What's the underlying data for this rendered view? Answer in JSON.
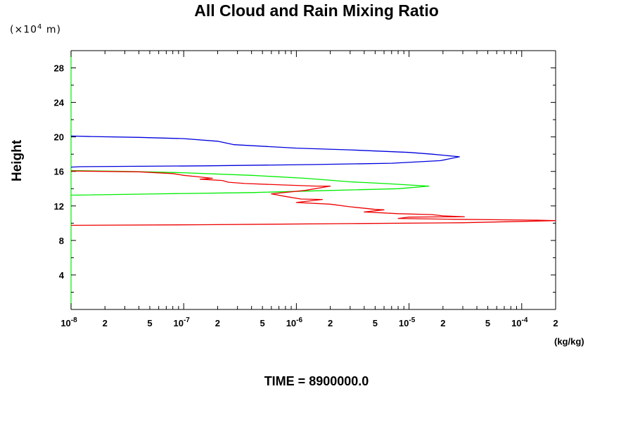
{
  "chart_data": {
    "type": "line",
    "title": "All Cloud and Rain Mixing Ratio",
    "ylabel": "Height",
    "yunit_prefix": "(×10",
    "yunit_exp": "4",
    "yunit_suffix": " m)",
    "xunit": "(kg/kg)",
    "footer": "TIME = 8900000.0",
    "xscale": "log",
    "xlim": [
      1e-08,
      0.0002
    ],
    "ylim": [
      0,
      30
    ],
    "grid": false,
    "yticks": [
      4,
      8,
      12,
      16,
      20,
      24,
      28
    ],
    "xticks": [
      {
        "v": 1e-08,
        "b": "10",
        "e": "-8"
      },
      {
        "v": 2e-08,
        "b": "2",
        "e": ""
      },
      {
        "v": 5e-08,
        "b": "5",
        "e": ""
      },
      {
        "v": 1e-07,
        "b": "10",
        "e": "-7"
      },
      {
        "v": 2e-07,
        "b": "2",
        "e": ""
      },
      {
        "v": 5e-07,
        "b": "5",
        "e": ""
      },
      {
        "v": 1e-06,
        "b": "10",
        "e": "-6"
      },
      {
        "v": 2e-06,
        "b": "2",
        "e": ""
      },
      {
        "v": 5e-06,
        "b": "5",
        "e": ""
      },
      {
        "v": 1e-05,
        "b": "10",
        "e": "-5"
      },
      {
        "v": 2e-05,
        "b": "2",
        "e": ""
      },
      {
        "v": 5e-05,
        "b": "5",
        "e": ""
      },
      {
        "v": 0.0001,
        "b": "10",
        "e": "-4"
      },
      {
        "v": 0.0002,
        "b": "2",
        "e": ""
      }
    ],
    "series": [
      {
        "color": "#0000dd",
        "points": [
          [
            1e-08,
            20.1
          ],
          [
            1.5e-08,
            20.05
          ],
          [
            4e-08,
            19.95
          ],
          [
            1e-07,
            19.8
          ],
          [
            2e-07,
            19.5
          ],
          [
            2.8e-07,
            19.1
          ],
          [
            1e-06,
            18.7
          ],
          [
            3e-06,
            18.5
          ],
          [
            1e-05,
            18.2
          ],
          [
            1.6e-05,
            18.0
          ],
          [
            2.8e-05,
            17.7
          ],
          [
            1.9e-05,
            17.25
          ],
          [
            7e-06,
            16.95
          ],
          [
            1.5e-06,
            16.8
          ],
          [
            1.5e-07,
            16.65
          ],
          [
            1.2e-08,
            16.55
          ],
          [
            1e-08,
            16.5
          ]
        ]
      },
      {
        "color": "#00ee00",
        "points": [
          [
            1e-08,
            16.1
          ],
          [
            3e-08,
            16.0
          ],
          [
            1e-07,
            15.85
          ],
          [
            4e-07,
            15.55
          ],
          [
            1.2e-06,
            15.2
          ],
          [
            3e-06,
            14.8
          ],
          [
            6e-06,
            14.6
          ],
          [
            1.1e-05,
            14.4
          ],
          [
            1.5e-05,
            14.3
          ],
          [
            8e-06,
            14.0
          ],
          [
            1.5e-06,
            13.75
          ],
          [
            4e-07,
            13.55
          ],
          [
            6e-08,
            13.4
          ],
          [
            1e-08,
            13.25
          ]
        ]
      },
      {
        "color": "#ee0000",
        "points": [
          [
            1e-08,
            16.05
          ],
          [
            4e-08,
            15.95
          ],
          [
            8e-08,
            15.75
          ],
          [
            1e-07,
            15.55
          ],
          [
            1.3e-07,
            15.4
          ],
          [
            1.8e-07,
            15.2
          ],
          [
            1.4e-07,
            15.1
          ],
          [
            2.2e-07,
            14.95
          ],
          [
            2.5e-07,
            14.75
          ],
          [
            3.5e-07,
            14.6
          ],
          [
            9e-07,
            14.4
          ],
          [
            1.5e-06,
            14.3
          ],
          [
            2e-06,
            14.3
          ],
          [
            1.2e-06,
            13.8
          ],
          [
            6e-07,
            13.4
          ],
          [
            8e-07,
            13.1
          ],
          [
            1.1e-06,
            12.8
          ],
          [
            1.7e-06,
            12.75
          ],
          [
            1e-06,
            12.4
          ],
          [
            2e-06,
            12.2
          ],
          [
            3e-06,
            11.9
          ],
          [
            5e-06,
            11.6
          ],
          [
            6e-06,
            11.55
          ],
          [
            4e-06,
            11.3
          ],
          [
            8e-06,
            11.1
          ],
          [
            1.6e-05,
            11.0
          ],
          [
            2e-05,
            10.85
          ],
          [
            3.1e-05,
            10.75
          ],
          [
            1e-05,
            10.7
          ],
          [
            8e-06,
            10.55
          ],
          [
            2.6e-05,
            10.45
          ],
          [
            0.00013,
            10.35
          ],
          [
            0.0002,
            10.3
          ],
          [
            3e-05,
            10.05
          ],
          [
            3e-06,
            9.95
          ],
          [
            1.5e-07,
            9.82
          ],
          [
            1e-08,
            9.75
          ]
        ]
      }
    ]
  }
}
